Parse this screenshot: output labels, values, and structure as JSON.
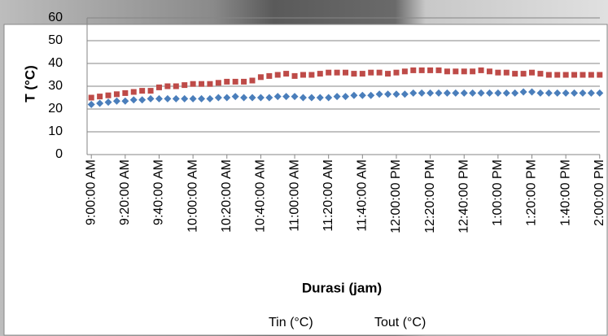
{
  "chart_data": {
    "type": "line",
    "x_label": "Durasi (jam)",
    "y_label": "T (°C)",
    "categories": [
      "9:00:00 AM",
      null,
      null,
      null,
      "9:20:00 AM",
      null,
      null,
      null,
      "9:40:00 AM",
      null,
      null,
      null,
      "10:00:00 AM",
      null,
      null,
      null,
      "10:20:00 AM",
      null,
      null,
      null,
      "10:40:00 AM",
      null,
      null,
      null,
      "11:00:00 AM",
      null,
      null,
      null,
      "11:20:00 AM",
      null,
      null,
      null,
      "11:40:00 AM",
      null,
      null,
      null,
      "12:00:00 PM",
      null,
      null,
      null,
      "12:20:00 PM",
      null,
      null,
      null,
      "12:40:00 PM",
      null,
      null,
      null,
      "1:00:00 PM",
      null,
      null,
      null,
      "1:20:00 PM",
      null,
      null,
      null,
      "1:40:00 PM",
      null,
      null,
      null,
      "2:00:00 PM"
    ],
    "series": [
      {
        "name": "Tin (°C)",
        "color": "#4a7ebb",
        "marker": "diamond",
        "values": [
          22,
          22.5,
          23,
          23.5,
          23.5,
          24,
          24,
          24.5,
          24.5,
          24.5,
          24.5,
          24.5,
          24.5,
          24.5,
          24.5,
          25,
          25,
          25.5,
          25,
          25,
          25,
          25,
          25.5,
          25.5,
          25.5,
          25,
          25,
          25,
          25,
          25.5,
          25.5,
          26,
          26,
          26,
          26.5,
          26.5,
          26.5,
          26.5,
          27,
          27,
          27,
          27,
          27,
          27,
          27,
          27,
          27,
          27,
          27,
          27,
          27,
          27.5,
          27.5,
          27,
          27,
          27,
          27,
          27,
          27,
          27,
          27
        ]
      },
      {
        "name": "Tout (°C)",
        "color": "#be4b48",
        "marker": "square",
        "values": [
          25,
          25.5,
          26,
          26.5,
          27,
          27.5,
          28,
          28,
          29.5,
          30,
          30,
          30.5,
          31,
          31,
          31,
          31.5,
          32,
          32,
          32,
          32.5,
          34,
          34.5,
          35,
          35.5,
          34.5,
          35,
          35,
          35.5,
          36,
          36,
          36,
          35.5,
          35.5,
          36,
          36,
          35.5,
          36,
          36.5,
          37,
          37,
          37,
          37,
          36.5,
          36.5,
          36.5,
          36.5,
          37,
          36.5,
          36,
          36,
          35.5,
          35.5,
          36,
          35.5,
          35,
          35,
          35,
          35,
          35,
          35,
          35
        ]
      }
    ],
    "ylim": [
      0,
      60
    ],
    "yticks": [
      0,
      10,
      20,
      30,
      40,
      50,
      60
    ],
    "grid": true,
    "legend": "bottom"
  }
}
